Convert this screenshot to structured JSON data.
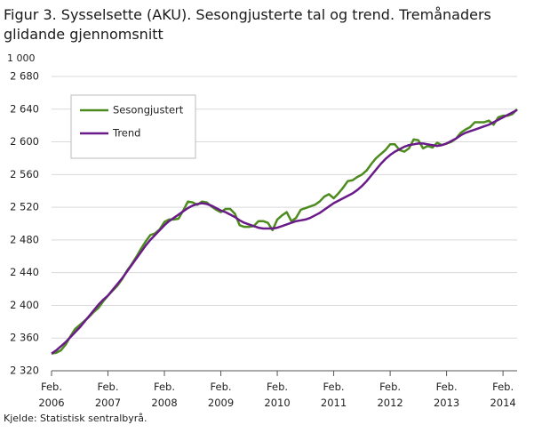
{
  "chart_data": {
    "type": "line",
    "title": "Figur 3. Sysselsette (AKU).  Sesongjusterte tal og trend. Tremånaders glidande gjennomsnitt",
    "unit_label": "1 000",
    "source": "Kjelde: Statistisk sentralbyrå.",
    "categories": [
      "Feb. 2006",
      null,
      null,
      null,
      null,
      null,
      null,
      null,
      null,
      null,
      null,
      null,
      "Feb. 2007",
      null,
      null,
      null,
      null,
      null,
      null,
      null,
      null,
      null,
      null,
      null,
      "Feb. 2008",
      null,
      null,
      null,
      null,
      null,
      null,
      null,
      null,
      null,
      null,
      null,
      "Feb. 2009",
      null,
      null,
      null,
      null,
      null,
      null,
      null,
      null,
      null,
      null,
      null,
      "Feb. 2010",
      null,
      null,
      null,
      null,
      null,
      null,
      null,
      null,
      null,
      null,
      null,
      "Feb. 2011",
      null,
      null,
      null,
      null,
      null,
      null,
      null,
      null,
      null,
      null,
      null,
      "Feb. 2012",
      null,
      null,
      null,
      null,
      null,
      null,
      null,
      null,
      null,
      null,
      null,
      "Feb. 2013",
      null,
      null,
      null,
      null,
      null,
      null,
      null,
      null,
      null,
      null,
      null,
      "Feb. 2014",
      null,
      null,
      null
    ],
    "series": [
      {
        "name": "Sesongjustert",
        "color": "#4d8b1f",
        "values": [
          2341,
          2342,
          2345,
          2352,
          2362,
          2371,
          2376,
          2381,
          2386,
          2392,
          2397,
          2405,
          2412,
          2418,
          2424,
          2432,
          2442,
          2450,
          2459,
          2469,
          2478,
          2486,
          2488,
          2493,
          2502,
          2505,
          2505,
          2506,
          2516,
          2527,
          2526,
          2523,
          2527,
          2526,
          2521,
          2517,
          2514,
          2518,
          2518,
          2512,
          2498,
          2496,
          2496,
          2497,
          2503,
          2503,
          2501,
          2492,
          2505,
          2510,
          2514,
          2503,
          2507,
          2517,
          2519,
          2521,
          2523,
          2527,
          2533,
          2536,
          2531,
          2537,
          2544,
          2552,
          2553,
          2557,
          2560,
          2565,
          2573,
          2580,
          2585,
          2590,
          2597,
          2597,
          2590,
          2588,
          2592,
          2603,
          2602,
          2592,
          2595,
          2593,
          2599,
          2596,
          2598,
          2600,
          2604,
          2611,
          2615,
          2618,
          2624,
          2624,
          2624,
          2626,
          2621,
          2630,
          2632,
          2632,
          2634,
          2640
        ]
      },
      {
        "name": "Trend",
        "color": "#6a1b8a",
        "values": [
          2341,
          2345,
          2350,
          2355,
          2361,
          2367,
          2373,
          2380,
          2387,
          2394,
          2401,
          2407,
          2412,
          2419,
          2426,
          2433,
          2441,
          2449,
          2457,
          2465,
          2473,
          2480,
          2486,
          2492,
          2498,
          2503,
          2507,
          2511,
          2515,
          2519,
          2522,
          2524,
          2525,
          2524,
          2522,
          2519,
          2516,
          2514,
          2511,
          2508,
          2504,
          2501,
          2499,
          2497,
          2495,
          2494,
          2494,
          2494,
          2495,
          2497,
          2499,
          2501,
          2503,
          2504,
          2505,
          2507,
          2510,
          2513,
          2517,
          2521,
          2525,
          2528,
          2531,
          2534,
          2537,
          2541,
          2546,
          2552,
          2559,
          2566,
          2573,
          2579,
          2584,
          2588,
          2591,
          2594,
          2596,
          2597,
          2598,
          2598,
          2597,
          2596,
          2595,
          2596,
          2598,
          2601,
          2604,
          2608,
          2611,
          2613,
          2615,
          2617,
          2619,
          2621,
          2624,
          2627,
          2630,
          2633,
          2636,
          2639
        ]
      }
    ],
    "ylim": [
      2320,
      2680
    ],
    "yticks": [
      {
        "value": 2320,
        "label": "2 320"
      },
      {
        "value": 2360,
        "label": "2 360"
      },
      {
        "value": 2400,
        "label": "2 400"
      },
      {
        "value": 2440,
        "label": "2 440"
      },
      {
        "value": 2480,
        "label": "2 480"
      },
      {
        "value": 2520,
        "label": "2 520"
      },
      {
        "value": 2560,
        "label": "2 560"
      },
      {
        "value": 2600,
        "label": "2 600"
      },
      {
        "value": 2640,
        "label": "2 640"
      },
      {
        "value": 2680,
        "label": "2 680"
      }
    ],
    "grid": true,
    "legend": "upper left"
  }
}
